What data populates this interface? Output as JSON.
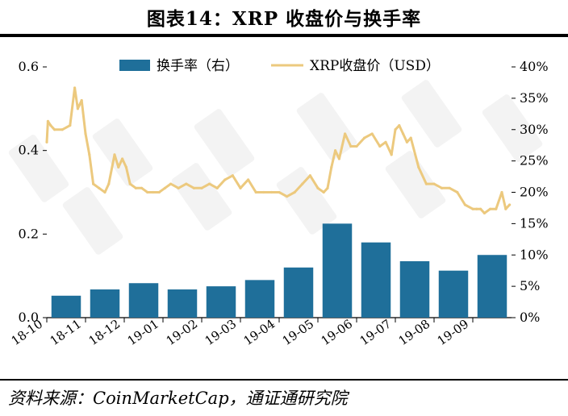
{
  "page": {
    "title": "图表14：XRP 收盘价与换手率",
    "source": "资料来源：CoinMarketCap，通证通研究院"
  },
  "chart_data": {
    "type": "bar+line",
    "categories": [
      "18-10",
      "18-11",
      "18-12",
      "19-01",
      "19-02",
      "19-03",
      "19-04",
      "19-05",
      "19-06",
      "19-07",
      "19-08",
      "19-09"
    ],
    "left_axis": {
      "ylim": [
        0,
        0.6
      ],
      "ticks": [
        "0.0",
        "0.2",
        "0.4",
        "0.6"
      ]
    },
    "right_axis": {
      "ylim": [
        0,
        40
      ],
      "ticks": [
        "0%",
        "5%",
        "10%",
        "15%",
        "20%",
        "25%",
        "30%",
        "35%",
        "40%"
      ]
    },
    "legend": {
      "placement": "top-center",
      "bar_label": "换手率（右）",
      "line_label": "XRP收盘价（USD）"
    },
    "colors": {
      "bar": "#1f6f9a",
      "line": "#ecc97e"
    },
    "series": [
      {
        "name": "换手率（右）",
        "type": "bar",
        "axis": "right",
        "unit": "%",
        "x": [
          0,
          1,
          2,
          3,
          4,
          5,
          6,
          7,
          8,
          9,
          10,
          11
        ],
        "values": [
          3.5,
          4.5,
          5.5,
          4.5,
          5.0,
          6.0,
          8.0,
          15.0,
          12.0,
          9.0,
          7.5,
          10.0
        ]
      },
      {
        "name": "XRP收盘价（USD）",
        "type": "line",
        "axis": "left",
        "unit": "USD",
        "x": [
          0,
          0.03,
          0.1,
          0.2,
          0.4,
          0.6,
          0.72,
          0.8,
          0.9,
          1.0,
          1.1,
          1.2,
          1.35,
          1.5,
          1.6,
          1.75,
          1.85,
          1.95,
          2.05,
          2.15,
          2.3,
          2.45,
          2.6,
          2.75,
          2.9,
          3.05,
          3.2,
          3.4,
          3.6,
          3.8,
          4.0,
          4.2,
          4.4,
          4.6,
          4.8,
          5.0,
          5.2,
          5.4,
          5.6,
          5.8,
          6.0,
          6.2,
          6.4,
          6.6,
          6.8,
          7.0,
          7.15,
          7.25,
          7.35,
          7.45,
          7.55,
          7.7,
          7.85,
          8.0,
          8.2,
          8.4,
          8.6,
          8.75,
          8.9,
          9.0,
          9.1,
          9.2,
          9.3,
          9.4,
          9.6,
          9.8,
          10.0,
          10.2,
          10.4,
          10.6,
          10.8,
          11.0,
          11.1,
          11.2,
          11.3,
          11.45,
          11.6,
          11.75,
          11.85,
          11.95
        ],
        "values": [
          0.42,
          0.47,
          0.46,
          0.45,
          0.45,
          0.46,
          0.55,
          0.5,
          0.52,
          0.44,
          0.39,
          0.32,
          0.31,
          0.3,
          0.32,
          0.39,
          0.36,
          0.38,
          0.36,
          0.32,
          0.31,
          0.31,
          0.3,
          0.3,
          0.3,
          0.31,
          0.32,
          0.31,
          0.32,
          0.31,
          0.31,
          0.32,
          0.31,
          0.33,
          0.34,
          0.31,
          0.33,
          0.3,
          0.3,
          0.3,
          0.3,
          0.29,
          0.3,
          0.32,
          0.34,
          0.31,
          0.3,
          0.31,
          0.36,
          0.4,
          0.38,
          0.44,
          0.41,
          0.41,
          0.43,
          0.44,
          0.41,
          0.42,
          0.39,
          0.45,
          0.46,
          0.44,
          0.42,
          0.43,
          0.36,
          0.32,
          0.32,
          0.31,
          0.31,
          0.3,
          0.27,
          0.26,
          0.26,
          0.26,
          0.25,
          0.26,
          0.26,
          0.3,
          0.26,
          0.27
        ]
      }
    ]
  }
}
